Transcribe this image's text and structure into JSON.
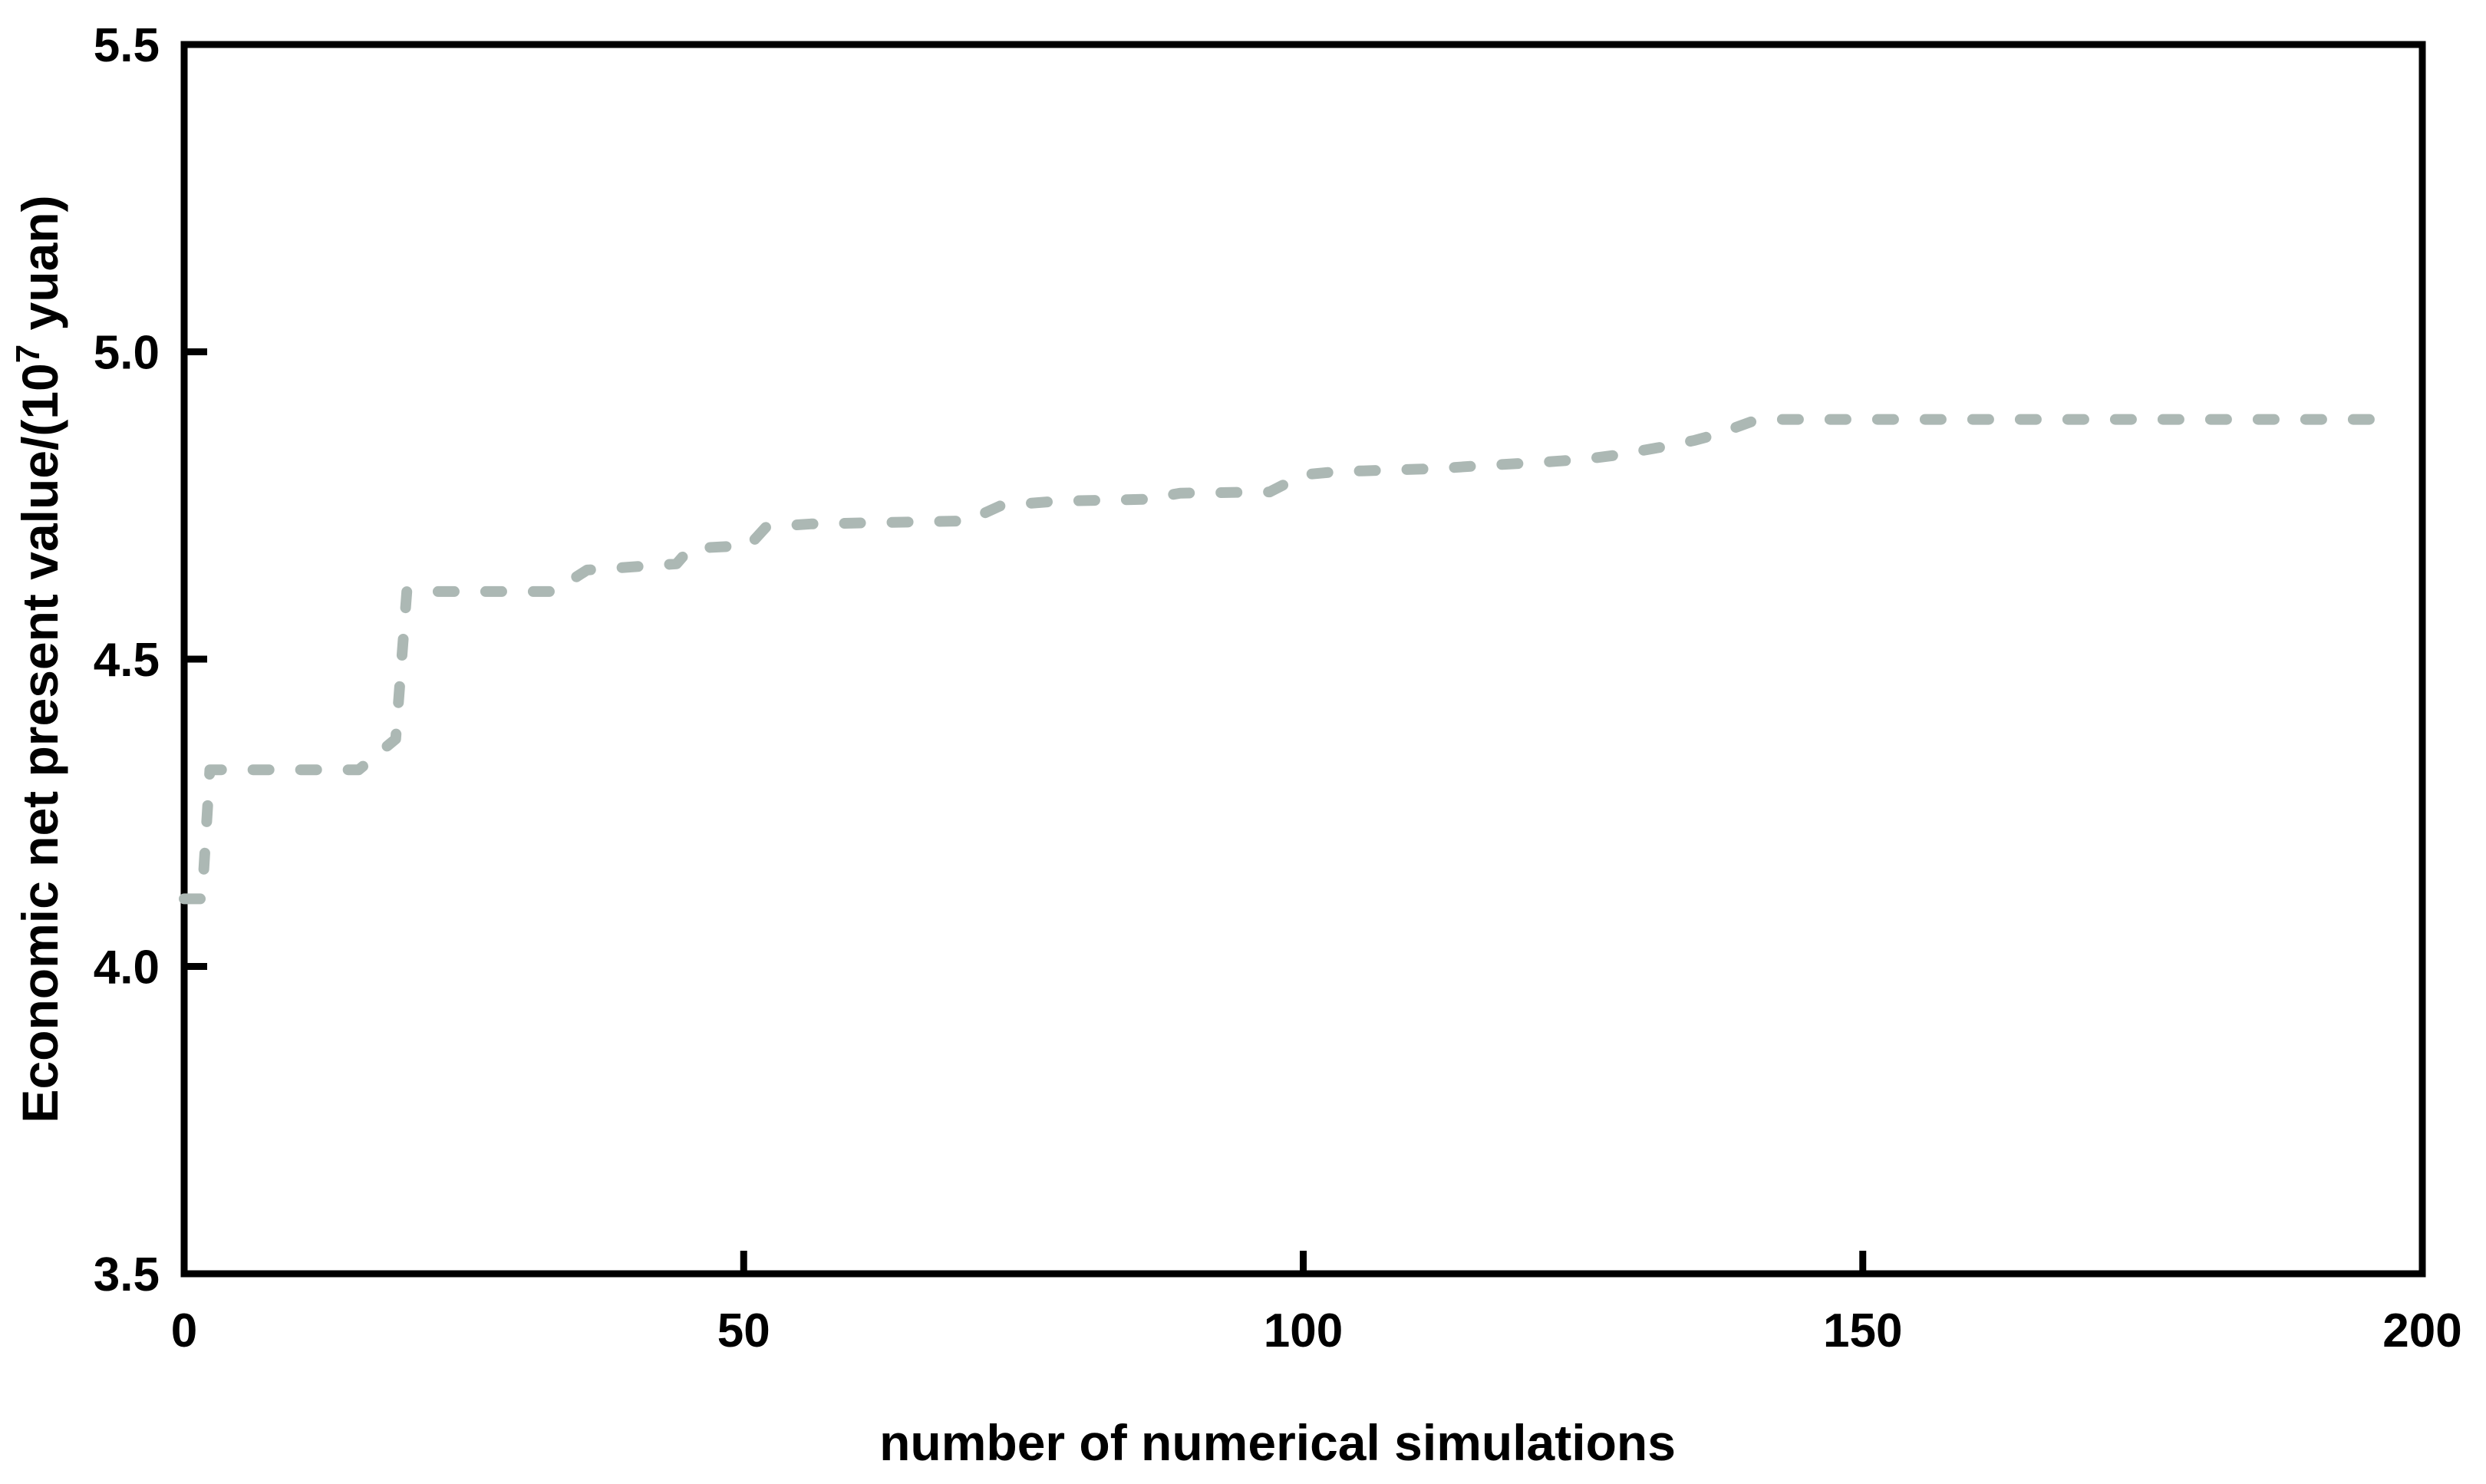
{
  "figure": {
    "background": "#ffffff",
    "frame_color": "#000000",
    "curve_color": "#acb8b4",
    "curve_style": "dashed"
  },
  "chart_data": {
    "type": "line",
    "title": "",
    "xlabel": "number of numerical simulations",
    "ylabel_prefix": "Economic net present value/(10",
    "ylabel_sup": "7",
    "ylabel_suffix": " yuan)",
    "xlim": [
      0,
      200
    ],
    "ylim": [
      3.5,
      5.5
    ],
    "grid": false,
    "legend_position": "none",
    "xticks": [
      0,
      50,
      100,
      150,
      200
    ],
    "xtick_labels": [
      "0",
      "50",
      "100",
      "150",
      "200"
    ],
    "yticks": [
      5.5,
      5.0,
      4.5,
      4.0,
      3.5
    ],
    "ytick_labels": [
      "5.5",
      "5.0",
      "4.5",
      "4.0",
      "3.5"
    ],
    "series": [
      {
        "name": "economic-npv-vs-simulations",
        "color": "#acb8b4",
        "line_style": "dashed",
        "points": [
          [
            0,
            4.11
          ],
          [
            1.6,
            4.11
          ],
          [
            2.3,
            4.32
          ],
          [
            15.6,
            4.32
          ],
          [
            18.9,
            4.37
          ],
          [
            19.9,
            4.61
          ],
          [
            33,
            4.61
          ],
          [
            36,
            4.645
          ],
          [
            44,
            4.655
          ],
          [
            45.2,
            4.68
          ],
          [
            50.5,
            4.685
          ],
          [
            52,
            4.715
          ],
          [
            56,
            4.72
          ],
          [
            70,
            4.725
          ],
          [
            73,
            4.75
          ],
          [
            78,
            4.757
          ],
          [
            86,
            4.76
          ],
          [
            89,
            4.77
          ],
          [
            97,
            4.772
          ],
          [
            100,
            4.8
          ],
          [
            103,
            4.805
          ],
          [
            112,
            4.81
          ],
          [
            116,
            4.815
          ],
          [
            121,
            4.82
          ],
          [
            125,
            4.825
          ],
          [
            128,
            4.832
          ],
          [
            132,
            4.845
          ],
          [
            135,
            4.856
          ],
          [
            137,
            4.866
          ],
          [
            140,
            4.886
          ],
          [
            142,
            4.89
          ],
          [
            198,
            4.89
          ]
        ]
      }
    ]
  }
}
